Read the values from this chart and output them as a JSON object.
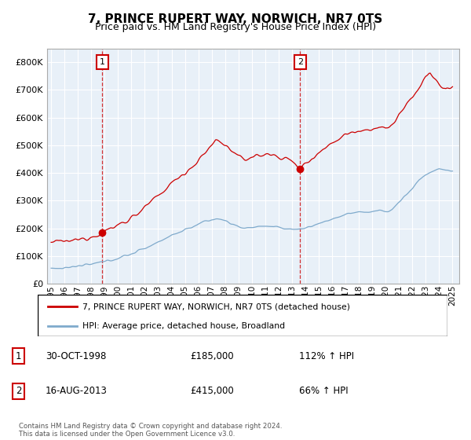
{
  "title": "7, PRINCE RUPERT WAY, NORWICH, NR7 0TS",
  "subtitle": "Price paid vs. HM Land Registry's House Price Index (HPI)",
  "legend_line1": "7, PRINCE RUPERT WAY, NORWICH, NR7 0TS (detached house)",
  "legend_line2": "HPI: Average price, detached house, Broadland",
  "sale1_date": "30-OCT-1998",
  "sale1_price": "£185,000",
  "sale1_hpi": "112% ↑ HPI",
  "sale2_date": "16-AUG-2013",
  "sale2_price": "£415,000",
  "sale2_hpi": "66% ↑ HPI",
  "footer": "Contains HM Land Registry data © Crown copyright and database right 2024.\nThis data is licensed under the Open Government Licence v3.0.",
  "red_color": "#cc0000",
  "blue_color": "#7faacc",
  "bg_color": "#e8f0f8",
  "sale1_x": 1998.83,
  "sale1_y": 185000,
  "sale2_x": 2013.62,
  "sale2_y": 415000,
  "ylim": [
    0,
    850000
  ],
  "xlim": [
    1994.7,
    2025.5
  ]
}
